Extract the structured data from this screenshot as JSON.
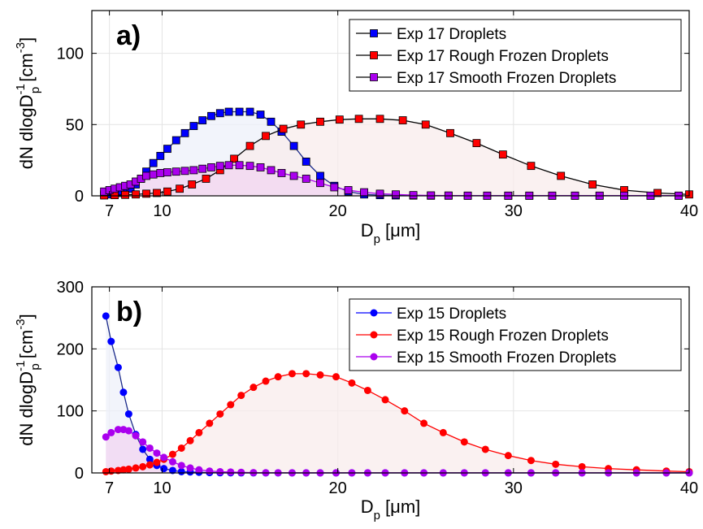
{
  "chart_data": [
    {
      "type": "line",
      "panel_label": "a)",
      "xlabel": "D",
      "xlabel_sub": "p",
      "xlabel_unit": " [μm]",
      "ylabel": "dN dlogD",
      "ylabel_sup": "-1",
      "ylabel_sub": "p",
      "ylabel_unit": " [cm",
      "ylabel_unit_sup": "-3",
      "ylabel_end": "]",
      "xlim": [
        6,
        40
      ],
      "ylim": [
        0,
        130
      ],
      "xticks": [
        7,
        10,
        20,
        30,
        40
      ],
      "xtick_labels": [
        "7",
        "10",
        "20",
        "30",
        "40"
      ],
      "yticks": [
        0,
        50,
        100
      ],
      "ytick_labels": [
        "0",
        "50",
        "100"
      ],
      "grid": true,
      "legend_position": "top-right",
      "marker": "square",
      "series": [
        {
          "name": "Exp 17 Droplets",
          "color": "#0000ff",
          "fill": "#eef0fa",
          "x": [
            6.7,
            7.0,
            7.3,
            7.6,
            7.9,
            8.2,
            8.5,
            8.8,
            9.1,
            9.5,
            9.9,
            10.3,
            10.8,
            11.3,
            11.8,
            12.3,
            12.8,
            13.3,
            13.8,
            14.4,
            15.0,
            15.6,
            16.2,
            16.8,
            17.5,
            18.2,
            19.0,
            19.8,
            20.6,
            21.5,
            22.4,
            23.3,
            24.3,
            25.3,
            26.3,
            27.4,
            28.5,
            29.7,
            30.9,
            32.2,
            33.5,
            34.9,
            36.3,
            37.8,
            39.4
          ],
          "values": [
            1,
            1,
            1,
            2,
            3,
            5,
            8,
            12,
            17,
            23,
            28,
            33,
            39,
            44,
            49,
            53,
            56,
            58,
            59,
            59,
            59,
            57,
            52,
            45,
            35,
            24,
            14,
            7,
            3,
            1,
            0.5,
            0.3,
            0.2,
            0.1,
            0.1,
            0.1,
            0.1,
            0.1,
            0.1,
            0.1,
            0.1,
            0.1,
            0.1,
            0.1,
            0.1
          ]
        },
        {
          "name": "Exp 17 Rough Frozen Droplets",
          "color": "#ff0000",
          "fill": "#f8ecec",
          "x": [
            6.7,
            7.3,
            7.9,
            8.5,
            9.1,
            9.7,
            10.3,
            11.0,
            11.7,
            12.5,
            13.3,
            14.1,
            15.0,
            15.9,
            16.9,
            17.9,
            19.0,
            20.1,
            21.2,
            22.4,
            23.7,
            25.0,
            26.4,
            27.9,
            29.4,
            31.0,
            32.7,
            34.5,
            36.3,
            38.2,
            40.0
          ],
          "values": [
            0.3,
            0.5,
            0.7,
            1,
            1.5,
            2,
            3,
            5,
            8,
            12,
            18,
            26,
            35,
            42,
            47,
            50,
            52,
            53.5,
            54,
            54,
            53,
            50,
            44,
            37,
            29,
            21,
            14,
            8,
            4,
            2,
            1
          ]
        },
        {
          "name": "Exp 17 Smooth Frozen Droplets",
          "color": "#aa00ee",
          "fill": "#f2d6f2",
          "x": [
            6.7,
            7.0,
            7.3,
            7.6,
            7.9,
            8.2,
            8.5,
            8.8,
            9.1,
            9.5,
            9.9,
            10.3,
            10.8,
            11.3,
            11.8,
            12.3,
            12.8,
            13.3,
            13.8,
            14.4,
            15.0,
            15.6,
            16.2,
            16.8,
            17.5,
            18.2,
            19.0,
            19.8,
            20.6,
            21.5,
            22.4,
            23.3,
            24.3,
            25.3,
            26.3,
            27.4,
            28.5,
            29.7,
            30.9,
            32.2,
            33.5,
            34.9,
            36.3,
            37.8,
            39.4
          ],
          "values": [
            3,
            4,
            5,
            6,
            7,
            8,
            10,
            12,
            14,
            15,
            16,
            16.5,
            17,
            17.5,
            18,
            19,
            20,
            21,
            21.5,
            21.5,
            21,
            20,
            18,
            16,
            14,
            12,
            9,
            6,
            4,
            2.5,
            1.5,
            1,
            0.5,
            0.3,
            0.2,
            0.1,
            0.1,
            0.1,
            0.1,
            0.1,
            0.1,
            0.1,
            0.1,
            0.1,
            0.1
          ]
        }
      ]
    },
    {
      "type": "line",
      "panel_label": "b)",
      "xlabel": "D",
      "xlabel_sub": "p",
      "xlabel_unit": " [μm]",
      "ylabel": "dN dlogD",
      "ylabel_sup": "-1",
      "ylabel_sub": "p",
      "ylabel_unit": " [cm",
      "ylabel_unit_sup": "-3",
      "ylabel_end": "]",
      "xlim": [
        6,
        40
      ],
      "ylim": [
        0,
        300
      ],
      "xticks": [
        7,
        10,
        20,
        30,
        40
      ],
      "xtick_labels": [
        "7",
        "10",
        "20",
        "30",
        "40"
      ],
      "yticks": [
        0,
        100,
        200,
        300
      ],
      "ytick_labels": [
        "0",
        "100",
        "200",
        "300"
      ],
      "grid": true,
      "legend_position": "top-right",
      "marker": "circle",
      "series": [
        {
          "name": "Exp 15 Droplets",
          "color": "#0000ff",
          "fill": "#eef0fa",
          "x": [
            6.8,
            7.1,
            7.5,
            7.8,
            8.1,
            8.5,
            8.9,
            9.3,
            9.7,
            10.1,
            10.6,
            11.1,
            11.6,
            12.1,
            12.7,
            13.3,
            13.9,
            14.5,
            15.2,
            15.9,
            16.6,
            17.4,
            18.2,
            19.0,
            19.9,
            20.8,
            21.7,
            22.7,
            23.8,
            24.9,
            26.0,
            27.2,
            28.4,
            29.7,
            31.0,
            32.4,
            33.9,
            35.4,
            37.0,
            38.7,
            40.0
          ],
          "values": [
            253,
            212,
            170,
            130,
            95,
            62,
            38,
            22,
            12,
            7,
            4,
            2,
            1.5,
            1,
            0.5,
            0.3,
            0.2,
            0.1,
            0.1,
            0.1,
            0.1,
            0.1,
            0.1,
            0.1,
            0.1,
            0.1,
            0.1,
            0.1,
            0.1,
            0.1,
            0.1,
            0.1,
            0.1,
            0.1,
            0.1,
            0.1,
            0.1,
            0.1,
            0.1,
            0.1,
            0.1
          ]
        },
        {
          "name": "Exp 15 Rough Frozen Droplets",
          "color": "#ff0000",
          "fill": "#f8ecec",
          "x": [
            6.8,
            7.1,
            7.5,
            7.8,
            8.1,
            8.5,
            8.9,
            9.3,
            9.7,
            10.1,
            10.6,
            11.1,
            11.6,
            12.1,
            12.7,
            13.3,
            13.9,
            14.5,
            15.2,
            15.9,
            16.6,
            17.4,
            18.2,
            19.0,
            19.9,
            20.8,
            21.7,
            22.7,
            23.8,
            24.9,
            26.0,
            27.2,
            28.4,
            29.7,
            31.0,
            32.4,
            33.9,
            35.4,
            37.0,
            38.7,
            40.0
          ],
          "values": [
            2,
            3,
            4,
            5,
            6,
            8,
            10,
            13,
            17,
            22,
            30,
            40,
            52,
            65,
            80,
            95,
            110,
            125,
            138,
            148,
            155,
            160,
            160,
            158,
            155,
            145,
            133,
            118,
            100,
            80,
            65,
            50,
            38,
            28,
            20,
            14,
            10,
            7,
            5,
            3,
            2
          ]
        },
        {
          "name": "Exp 15 Smooth Frozen Droplets",
          "color": "#aa00ee",
          "fill": "#f2d6f2",
          "x": [
            6.8,
            7.1,
            7.5,
            7.8,
            8.1,
            8.5,
            8.9,
            9.3,
            9.7,
            10.1,
            10.6,
            11.1,
            11.6,
            12.1,
            12.7,
            13.3,
            13.9,
            14.5,
            15.2,
            15.9,
            16.6,
            17.4,
            18.2,
            19.0,
            19.9,
            20.8,
            21.7,
            22.7,
            23.8,
            24.9,
            26.0,
            27.2,
            28.4,
            29.7,
            31.0,
            32.4,
            33.9,
            35.4,
            37.0,
            38.7,
            40.0
          ],
          "values": [
            58,
            65,
            70,
            70,
            68,
            60,
            50,
            40,
            32,
            25,
            18,
            12,
            8,
            5,
            3,
            2,
            1.5,
            1,
            0.5,
            0.3,
            0.2,
            0.1,
            0.1,
            0.1,
            0.1,
            0.1,
            0.1,
            0.1,
            0.1,
            0.1,
            0.1,
            0.1,
            0.1,
            0.1,
            0.1,
            0.1,
            0.1,
            0.1,
            0.1,
            0.1,
            0.1
          ]
        }
      ]
    }
  ]
}
